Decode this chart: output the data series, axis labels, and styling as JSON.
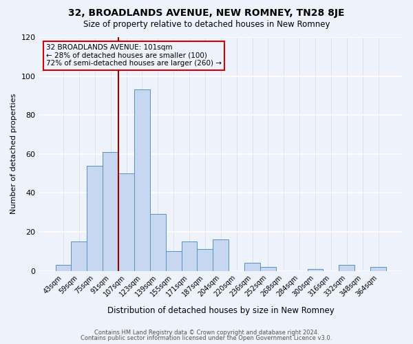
{
  "title": "32, BROADLANDS AVENUE, NEW ROMNEY, TN28 8JE",
  "subtitle": "Size of property relative to detached houses in New Romney",
  "xlabel": "Distribution of detached houses by size in New Romney",
  "ylabel": "Number of detached properties",
  "bar_labels": [
    "43sqm",
    "59sqm",
    "75sqm",
    "91sqm",
    "107sqm",
    "123sqm",
    "139sqm",
    "155sqm",
    "171sqm",
    "187sqm",
    "204sqm",
    "220sqm",
    "236sqm",
    "252sqm",
    "268sqm",
    "284sqm",
    "300sqm",
    "316sqm",
    "332sqm",
    "348sqm",
    "364sqm"
  ],
  "bar_values": [
    3,
    15,
    54,
    61,
    50,
    93,
    29,
    10,
    15,
    11,
    16,
    0,
    4,
    2,
    0,
    0,
    1,
    0,
    3,
    0,
    2
  ],
  "bar_color": "#c5d8f0",
  "bar_edge_color": "#5b8fc9",
  "ylim": [
    0,
    120
  ],
  "yticks": [
    0,
    20,
    40,
    60,
    80,
    100,
    120
  ],
  "vline_x": 3.5,
  "vline_color": "#990000",
  "annotation_title": "32 BROADLANDS AVENUE: 101sqm",
  "annotation_line1": "← 28% of detached houses are smaller (100)",
  "annotation_line2": "72% of semi-detached houses are larger (260) →",
  "annotation_box_color": "#cc0000",
  "footer1": "Contains HM Land Registry data © Crown copyright and database right 2024.",
  "footer2": "Contains public sector information licensed under the Open Government Licence v3.0.",
  "background_color": "#eef2fb",
  "grid_color": "#d0d8e8"
}
